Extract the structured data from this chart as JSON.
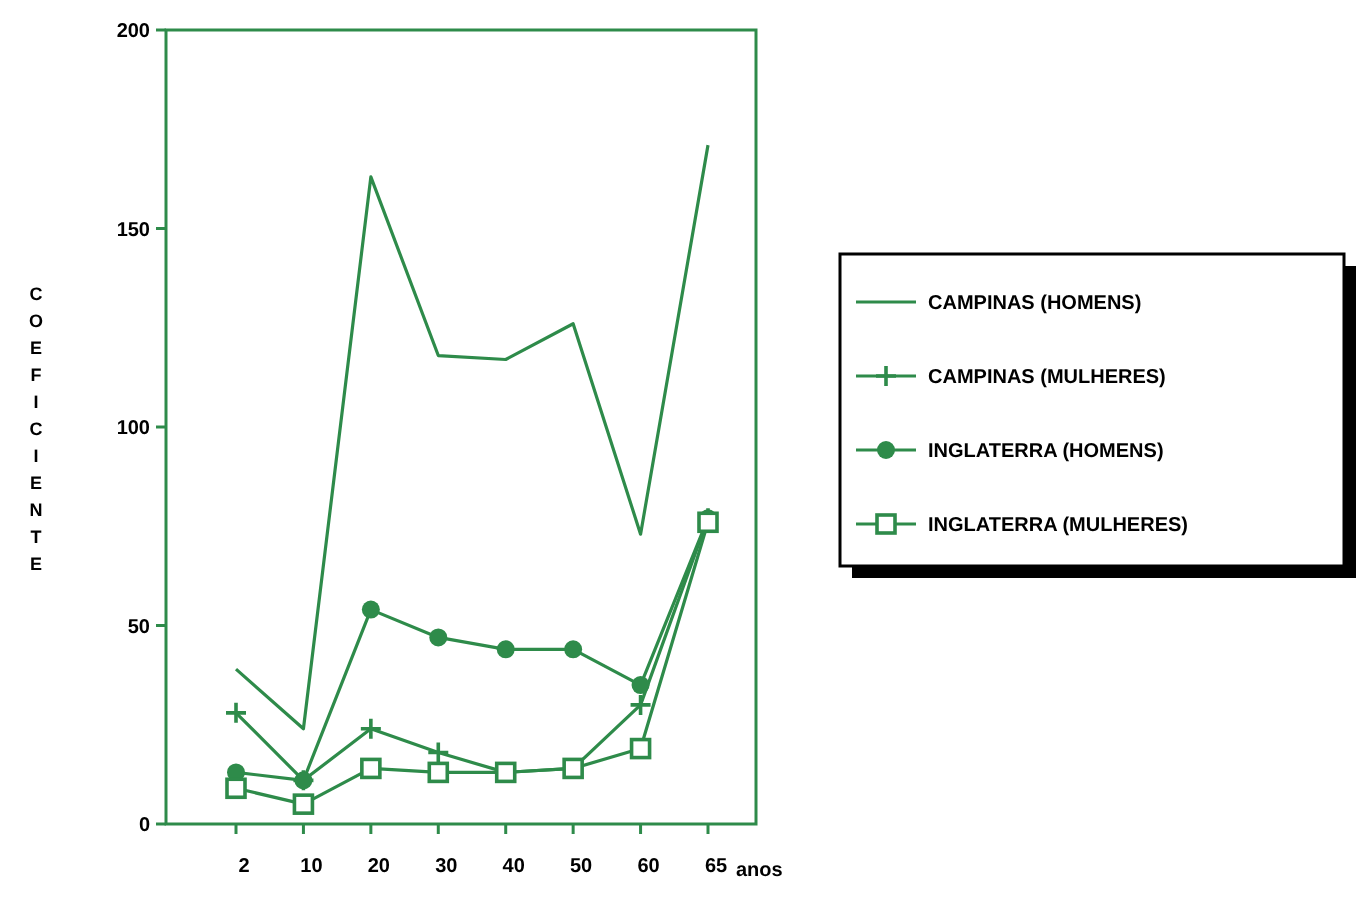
{
  "chart_data": {
    "type": "line",
    "ylabel": "COEFICIENTE",
    "xlabel": "anos",
    "categories": [
      "2",
      "10",
      "20",
      "30",
      "40",
      "50",
      "60",
      "65"
    ],
    "ylim": [
      0,
      200
    ],
    "yticks": [
      0,
      50,
      100,
      150,
      200
    ],
    "grid": false,
    "legend": "right",
    "series": [
      {
        "name": "CAMPINAS (HOMENS)",
        "color": "#2e8b4a",
        "marker": "none",
        "values": [
          39,
          24,
          163,
          118,
          117,
          126,
          73,
          171
        ]
      },
      {
        "name": "CAMPINAS (MULHERES)",
        "color": "#2e8b4a",
        "marker": "cross",
        "values": [
          28,
          11,
          24,
          18,
          13,
          14,
          30,
          77
        ]
      },
      {
        "name": "INGLATERRA (HOMENS)",
        "color": "#2e8b4a",
        "marker": "circle",
        "values": [
          13,
          11,
          54,
          47,
          44,
          44,
          35,
          77
        ]
      },
      {
        "name": "INGLATERRA (MULHERES)",
        "color": "#2e8b4a",
        "marker": "square",
        "values": [
          9,
          5,
          14,
          13,
          13,
          14,
          19,
          76
        ]
      }
    ]
  }
}
